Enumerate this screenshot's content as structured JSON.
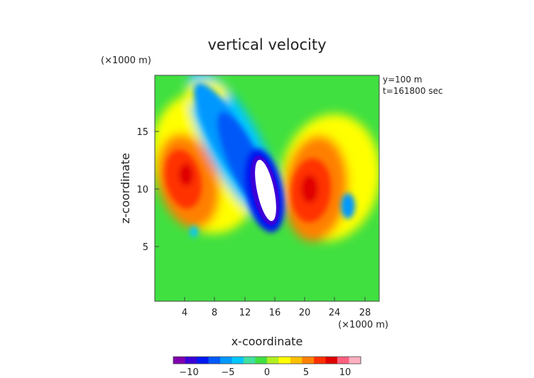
{
  "chart_data": {
    "type": "heatmap",
    "title": "vertical velocity",
    "xlabel": "x-coordinate",
    "ylabel": "z-coordinate",
    "x_unit": "(×1000 m)",
    "y_unit": "(×1000 m)",
    "xlim": [
      0,
      30
    ],
    "ylim": [
      0,
      19.5
    ],
    "x_ticks": [
      "4",
      "8",
      "12",
      "16",
      "20",
      "24",
      "28"
    ],
    "y_ticks": [
      "5",
      "10",
      "15"
    ],
    "annotations": [
      "y=100 m",
      "t=161800 sec"
    ],
    "colorbar": {
      "range": [
        -12,
        12
      ],
      "tick_labels": [
        "−10",
        "−5",
        "0",
        "5",
        "10"
      ],
      "colors": [
        "#8000b0",
        "#3a00d8",
        "#0018f0",
        "#0058f8",
        "#0098ff",
        "#00c8ff",
        "#40e0a0",
        "#40e040",
        "#b0f020",
        "#ffff00",
        "#ffc000",
        "#ff8000",
        "#ff3000",
        "#e00000",
        "#ff6080",
        "#ffb0c0"
      ]
    },
    "features": [
      {
        "name": "downdraft core",
        "x": 14.7,
        "z": 9.5,
        "value": -14
      },
      {
        "name": "downdraft band",
        "x": 9.5,
        "z": 14,
        "value": -8
      },
      {
        "name": "updraft left",
        "x": 4.5,
        "z": 11,
        "value": 8
      },
      {
        "name": "updraft right",
        "x": 20.5,
        "z": 10,
        "value": 9
      },
      {
        "name": "weak negative",
        "x": 25,
        "z": 8.5,
        "value": -3
      }
    ]
  }
}
